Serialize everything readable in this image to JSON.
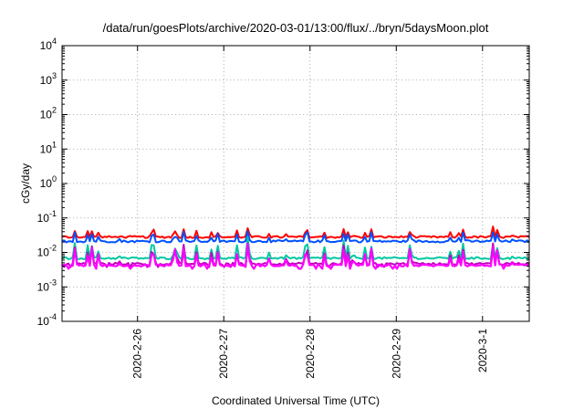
{
  "chart_data": {
    "type": "line",
    "title": "/data/run/goesPlots/archive/2020-03-01/13:00/flux/../bryn/5daysMoon.plot",
    "xlabel": "Coordinated Universal Time (UTC)",
    "ylabel": "cGy/day",
    "y_scale": "log",
    "ylim": [
      0.0001,
      10000
    ],
    "xlim": [
      "2020-02-25 03:00",
      "2020-03-01 13:00"
    ],
    "y_ticks": [
      {
        "value": 0.0001,
        "base": "10",
        "exp": "-4"
      },
      {
        "value": 0.001,
        "base": "10",
        "exp": "-3"
      },
      {
        "value": 0.01,
        "base": "10",
        "exp": "-2"
      },
      {
        "value": 0.1,
        "base": "10",
        "exp": "-1"
      },
      {
        "value": 1,
        "base": "10",
        "exp": "0"
      },
      {
        "value": 10,
        "base": "10",
        "exp": "1"
      },
      {
        "value": 100,
        "base": "10",
        "exp": "2"
      },
      {
        "value": 1000,
        "base": "10",
        "exp": "3"
      },
      {
        "value": 10000,
        "base": "10",
        "exp": "4"
      }
    ],
    "x_ticks": [
      {
        "value": "2020-02-26 00:00",
        "label": "2020-2-26"
      },
      {
        "value": "2020-02-27 00:00",
        "label": "2020-2-27"
      },
      {
        "value": "2020-02-28 00:00",
        "label": "2020-2-28"
      },
      {
        "value": "2020-02-29 00:00",
        "label": "2020-2-29"
      },
      {
        "value": "2020-03-01 00:00",
        "label": "2020-3-1"
      }
    ],
    "grid": true,
    "series": [
      {
        "color": "#ff0000",
        "baseline": 0.028,
        "spike_max": 0.06
      },
      {
        "color": "#0050ff",
        "baseline": 0.021,
        "spike_max": 0.05
      },
      {
        "color": "#00c8a0",
        "baseline": 0.0068,
        "spike_max": 0.03
      },
      {
        "color": "#c000c0",
        "baseline": 0.0047,
        "spike_max": 0.022
      },
      {
        "color": "#ff00ff",
        "baseline": 0.0042,
        "spike_max": 0.02
      }
    ]
  }
}
